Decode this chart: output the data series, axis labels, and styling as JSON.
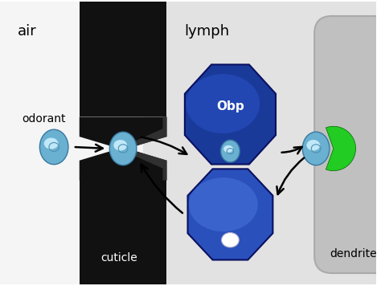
{
  "fig_width": 4.74,
  "fig_height": 3.56,
  "air_bg": "#f5f5f5",
  "lymph_bg": "#e2e2e2",
  "cuticle_color": "#111111",
  "cuticle_edge": "#333333",
  "dendrite_color_face": "#c0c0c0",
  "dendrite_color_edge": "#aaaaaa",
  "label_air": "air",
  "label_lymph": "lymph",
  "label_cuticle": "cuticle",
  "label_dendrite": "dendrite",
  "label_odorant": "odorant",
  "label_obp": "Obp",
  "arrow_color": "#000000",
  "obp_dark": "#1a3a9a",
  "obp_mid": "#2a55cc",
  "obp_light": "#4a80dd",
  "mol_outer": "#6ab0d0",
  "mol_inner": "#c0e8f8",
  "mol_edge": "#3878a0",
  "green_dark": "#006600",
  "green_bright": "#22cc22"
}
